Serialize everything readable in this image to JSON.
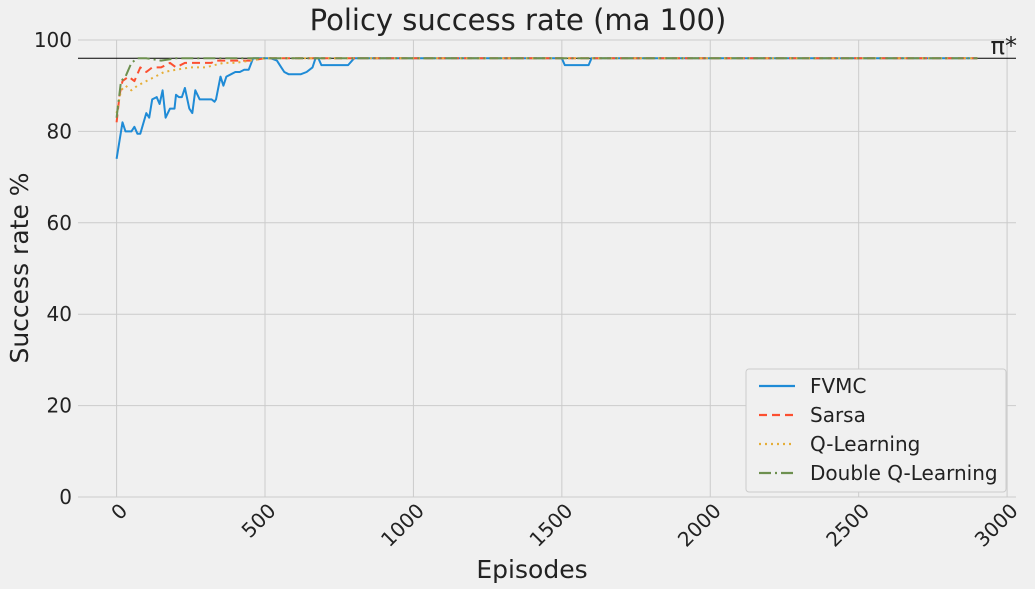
{
  "chart_data": {
    "type": "line",
    "title": "Policy success rate (ma 100)",
    "xlabel": "Episodes",
    "ylabel": "Success rate %",
    "xlim": [
      -130,
      3030
    ],
    "ylim": [
      0,
      100
    ],
    "xticks": [
      0,
      500,
      1000,
      1500,
      2000,
      2500,
      3000
    ],
    "yticks": [
      0,
      20,
      40,
      60,
      80,
      100
    ],
    "grid": true,
    "legend_position": "bottom-right",
    "reference_line": {
      "label": "π*",
      "value": 96,
      "color": "#000000"
    },
    "series": [
      {
        "name": "FVMC",
        "color": "#1f8bd6",
        "dash": "solid",
        "points": [
          [
            0,
            74
          ],
          [
            20,
            82
          ],
          [
            30,
            80
          ],
          [
            50,
            80
          ],
          [
            60,
            81
          ],
          [
            70,
            79.5
          ],
          [
            80,
            79.5
          ],
          [
            100,
            84
          ],
          [
            110,
            83
          ],
          [
            120,
            87
          ],
          [
            135,
            87.5
          ],
          [
            145,
            86
          ],
          [
            155,
            89
          ],
          [
            165,
            83
          ],
          [
            180,
            85
          ],
          [
            195,
            85
          ],
          [
            200,
            88
          ],
          [
            210,
            87.5
          ],
          [
            220,
            87.5
          ],
          [
            230,
            89.5
          ],
          [
            245,
            85
          ],
          [
            255,
            84
          ],
          [
            265,
            89
          ],
          [
            280,
            87
          ],
          [
            300,
            87
          ],
          [
            320,
            87
          ],
          [
            330,
            86.5
          ],
          [
            335,
            87
          ],
          [
            350,
            92
          ],
          [
            360,
            90
          ],
          [
            370,
            92
          ],
          [
            385,
            92.5
          ],
          [
            400,
            93
          ],
          [
            415,
            93
          ],
          [
            430,
            93.5
          ],
          [
            445,
            93.5
          ],
          [
            460,
            96
          ],
          [
            480,
            96
          ],
          [
            500,
            96
          ],
          [
            520,
            96
          ],
          [
            540,
            95.5
          ],
          [
            555,
            94
          ],
          [
            565,
            93
          ],
          [
            580,
            92.5
          ],
          [
            600,
            92.5
          ],
          [
            620,
            92.5
          ],
          [
            640,
            93
          ],
          [
            660,
            94
          ],
          [
            670,
            96
          ],
          [
            680,
            96
          ],
          [
            690,
            94.5
          ],
          [
            720,
            94.5
          ],
          [
            760,
            94.5
          ],
          [
            780,
            94.5
          ],
          [
            800,
            96
          ],
          [
            900,
            96
          ],
          [
            1000,
            96
          ],
          [
            1200,
            96
          ],
          [
            1400,
            96
          ],
          [
            1500,
            96
          ],
          [
            1510,
            94.5
          ],
          [
            1560,
            94.5
          ],
          [
            1590,
            94.5
          ],
          [
            1600,
            96
          ],
          [
            1800,
            96
          ],
          [
            2000,
            96
          ],
          [
            2500,
            96
          ],
          [
            2900,
            96
          ]
        ]
      },
      {
        "name": "Sarsa",
        "color": "#fc4f30",
        "dash": "8,5",
        "points": [
          [
            0,
            82
          ],
          [
            10,
            88
          ],
          [
            20,
            91
          ],
          [
            40,
            92
          ],
          [
            60,
            91
          ],
          [
            80,
            94
          ],
          [
            100,
            93
          ],
          [
            120,
            94
          ],
          [
            150,
            94
          ],
          [
            180,
            95
          ],
          [
            200,
            94
          ],
          [
            230,
            95
          ],
          [
            260,
            95
          ],
          [
            300,
            95
          ],
          [
            320,
            95
          ],
          [
            330,
            95.5
          ],
          [
            350,
            95.5
          ],
          [
            400,
            95.5
          ],
          [
            450,
            95.5
          ],
          [
            500,
            96
          ],
          [
            600,
            96
          ],
          [
            800,
            96
          ],
          [
            1000,
            96
          ],
          [
            1500,
            96
          ],
          [
            2000,
            96
          ],
          [
            2500,
            96
          ],
          [
            2900,
            96
          ]
        ]
      },
      {
        "name": "Q-Learning",
        "color": "#e5ae38",
        "dash": "2,4",
        "points": [
          [
            0,
            84
          ],
          [
            15,
            89
          ],
          [
            30,
            90
          ],
          [
            50,
            89
          ],
          [
            70,
            90
          ],
          [
            100,
            91
          ],
          [
            130,
            92
          ],
          [
            160,
            93
          ],
          [
            200,
            93.5
          ],
          [
            250,
            94
          ],
          [
            300,
            94
          ],
          [
            330,
            94.5
          ],
          [
            360,
            95
          ],
          [
            400,
            95
          ],
          [
            450,
            95.5
          ],
          [
            500,
            96
          ],
          [
            600,
            96
          ],
          [
            800,
            96
          ],
          [
            1000,
            96
          ],
          [
            1500,
            96
          ],
          [
            2000,
            96
          ],
          [
            2500,
            96
          ],
          [
            2900,
            96
          ]
        ]
      },
      {
        "name": "Double Q-Learning",
        "color": "#6d904f",
        "dash": "12,4,2,4",
        "points": [
          [
            0,
            83
          ],
          [
            15,
            91
          ],
          [
            30,
            92
          ],
          [
            50,
            95
          ],
          [
            70,
            96
          ],
          [
            100,
            96
          ],
          [
            150,
            95.5
          ],
          [
            200,
            96
          ],
          [
            300,
            96
          ],
          [
            400,
            96
          ],
          [
            500,
            96
          ],
          [
            800,
            96
          ],
          [
            1000,
            96
          ],
          [
            1500,
            96
          ],
          [
            2000,
            96
          ],
          [
            2500,
            96
          ],
          [
            2900,
            96
          ]
        ]
      }
    ]
  }
}
